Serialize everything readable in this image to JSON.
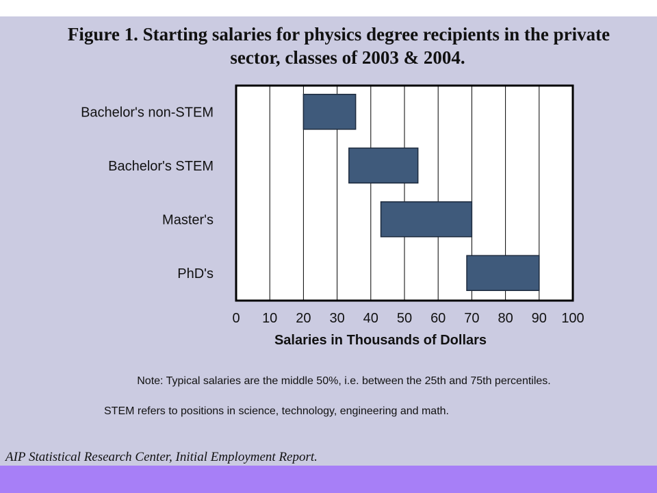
{
  "title_line1": "Figure 1.  Starting salaries for physics degree recipients in the  private",
  "title_line2": "sector, classes of 2003 & 2004.",
  "note1": "Note: Typical salaries are the middle 50%, i.e. between the 25th and 75th percentiles.",
  "note2": "STEM refers to positions in science, technology, engineering and math.",
  "source": "AIP Statistical Research Center, Initial Employment Report.",
  "colors": {
    "background": "#cbcbe1",
    "bar_fill": "#3f5a7b",
    "bar_stroke": "#1c2a3d",
    "footer_band": "#a77ff7"
  },
  "chart_data": {
    "type": "bar",
    "orientation": "horizontal-range",
    "categories": [
      "Bachelor's non-STEM",
      "Bachelor's STEM",
      "Master's",
      "PhD's"
    ],
    "series": [
      {
        "low": [
          20,
          33.5,
          43,
          68.5
        ],
        "high": [
          35.5,
          54,
          70,
          90
        ]
      }
    ],
    "xlabel": "Salaries in Thousands of Dollars",
    "xlim": [
      0,
      100
    ],
    "xticks": [
      0,
      10,
      20,
      30,
      40,
      50,
      60,
      70,
      80,
      90,
      100
    ],
    "grid": true
  }
}
